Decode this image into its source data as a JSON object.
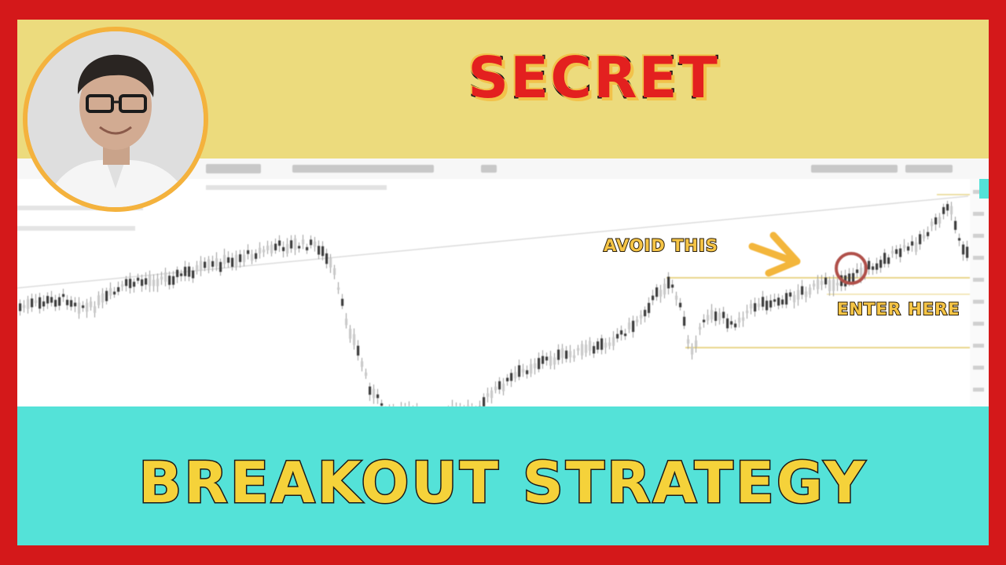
{
  "title_top": "SECRET",
  "title_bottom": "BREAKOUT STRATEGY",
  "annotations": {
    "avoid": "AVOID THIS",
    "enter": "ENTER HERE"
  },
  "colors": {
    "border": "#d4181a",
    "top_band": "#ecdb7d",
    "bottom_band": "#54e2d8",
    "title_top_fill": "#e3201f",
    "title_bottom_fill": "#f5d23a",
    "annotation": "#f6c546",
    "avatar_ring": "#f4b23d",
    "circle_marker": "#b0504a"
  },
  "icons": {
    "avatar": "presenter-portrait-icon",
    "arrow": "arrow-down-right-icon",
    "marker": "circle-marker-icon"
  }
}
